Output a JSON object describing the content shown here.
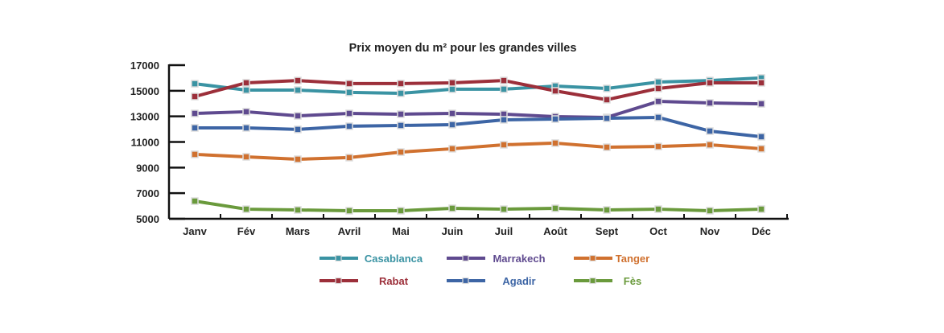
{
  "chart_data": {
    "type": "line",
    "title": "Prix moyen du m² pour les grandes villes",
    "xlabel": "",
    "ylabel": "",
    "ylim": [
      5000,
      17000
    ],
    "yticks": [
      "17000",
      "15000",
      "13000",
      "11000",
      "9000",
      "7000",
      "5000"
    ],
    "ytick_values": [
      17000,
      15000,
      13000,
      11000,
      9000,
      7000,
      5000
    ],
    "categories": [
      "Janv",
      "Fév",
      "Mars",
      "Avril",
      "Mai",
      "Juin",
      "Juil",
      "Août",
      "Sept",
      "Oct",
      "Nov",
      "Déc"
    ],
    "grid": false,
    "legend_position": "bottom",
    "series": [
      {
        "name": "Casablanca",
        "color": "#3a93a3",
        "values": [
          15550,
          15050,
          15050,
          14870,
          14800,
          15120,
          15120,
          15370,
          15180,
          15680,
          15800,
          16000
        ]
      },
      {
        "name": "Marrakech",
        "color": "#5f4a8f",
        "values": [
          13230,
          13360,
          13040,
          13230,
          13170,
          13230,
          13170,
          12980,
          12920,
          14170,
          14050,
          13980
        ]
      },
      {
        "name": "Tanger",
        "color": "#d0712f",
        "values": [
          10030,
          9840,
          9650,
          9780,
          10210,
          10470,
          10780,
          10910,
          10590,
          10650,
          10780,
          10470
        ]
      },
      {
        "name": "Rabat",
        "color": "#9c2f3a",
        "values": [
          14550,
          15620,
          15800,
          15560,
          15560,
          15620,
          15800,
          14990,
          14300,
          15180,
          15620,
          15620
        ]
      },
      {
        "name": "Agadir",
        "color": "#3d65a5",
        "values": [
          12100,
          12100,
          11980,
          12230,
          12290,
          12350,
          12730,
          12790,
          12850,
          12920,
          11850,
          11410
        ]
      },
      {
        "name": "Fès",
        "color": "#6a9a3c",
        "values": [
          6380,
          5750,
          5690,
          5630,
          5630,
          5820,
          5750,
          5820,
          5690,
          5750,
          5630,
          5750
        ]
      }
    ]
  }
}
